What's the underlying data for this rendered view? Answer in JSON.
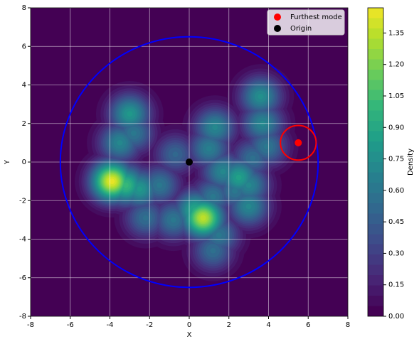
{
  "chart_data": {
    "type": "density",
    "xlabel": "X",
    "ylabel": "Y",
    "colorbar_label": "Density",
    "xlim": [
      -8,
      8
    ],
    "ylim": [
      -8,
      8
    ],
    "xticks": [
      -8,
      -6,
      -4,
      -2,
      0,
      2,
      4,
      6,
      8
    ],
    "yticks": [
      -8,
      -6,
      -4,
      -2,
      0,
      2,
      4,
      6,
      8
    ],
    "clim": [
      0,
      1.47
    ],
    "cticks": [
      {
        "value": 0,
        "label": "0.00"
      },
      {
        "value": 0.15,
        "label": "0.15"
      },
      {
        "value": 0.3,
        "label": "0.30"
      },
      {
        "value": 0.45,
        "label": "0.45"
      },
      {
        "value": 0.6,
        "label": "0.60"
      },
      {
        "value": 0.75,
        "label": "0.75"
      },
      {
        "value": 0.9,
        "label": "0.90"
      },
      {
        "value": 1.05,
        "label": "1.05"
      },
      {
        "value": 1.2,
        "label": "1.20"
      },
      {
        "value": 1.35,
        "label": "1.35"
      }
    ],
    "grid": true,
    "colormap": "viridis",
    "peaks": {
      "x": [
        -3.9,
        -3.2,
        -2.5,
        -1.5,
        -3.0,
        -3.5,
        -2.8,
        -0.7,
        0.7,
        0.3,
        -0.8,
        -2.2,
        1.5,
        1.2,
        1.3,
        1.0,
        1.7,
        2.5,
        3.0,
        3.0,
        2.3,
        3.6,
        3.7,
        3.9,
        3.2,
        1.2
      ],
      "y": [
        -1.0,
        -1.2,
        -1.4,
        -1.2,
        2.5,
        1.0,
        1.5,
        0.4,
        -2.9,
        -2.5,
        -3.0,
        -2.9,
        -3.8,
        -4.6,
        1.8,
        0.7,
        -0.5,
        -0.8,
        -1.2,
        -2.3,
        -1.5,
        3.4,
        2.0,
        0.8,
        0.2,
        -1.8
      ],
      "values": [
        1.45,
        1.0,
        0.8,
        0.6,
        0.8,
        0.7,
        0.6,
        0.5,
        1.35,
        0.9,
        0.6,
        0.55,
        0.6,
        0.55,
        0.7,
        0.65,
        0.7,
        0.85,
        0.7,
        0.7,
        0.6,
        0.75,
        0.7,
        0.6,
        0.55,
        0.6
      ]
    },
    "circles": [
      {
        "x": 0,
        "y": 0,
        "r": 6.5,
        "color": "#0000ff"
      },
      {
        "x": 5.5,
        "y": 1,
        "r": 0.9,
        "color": "#ff0000"
      }
    ],
    "series": [
      {
        "name": "Furthest mode",
        "color": "#ff0000",
        "x": [
          5.5
        ],
        "y": [
          1
        ]
      },
      {
        "name": "Origin",
        "color": "#000000",
        "x": [
          0
        ],
        "y": [
          0
        ]
      }
    ],
    "legend": "upper right"
  }
}
